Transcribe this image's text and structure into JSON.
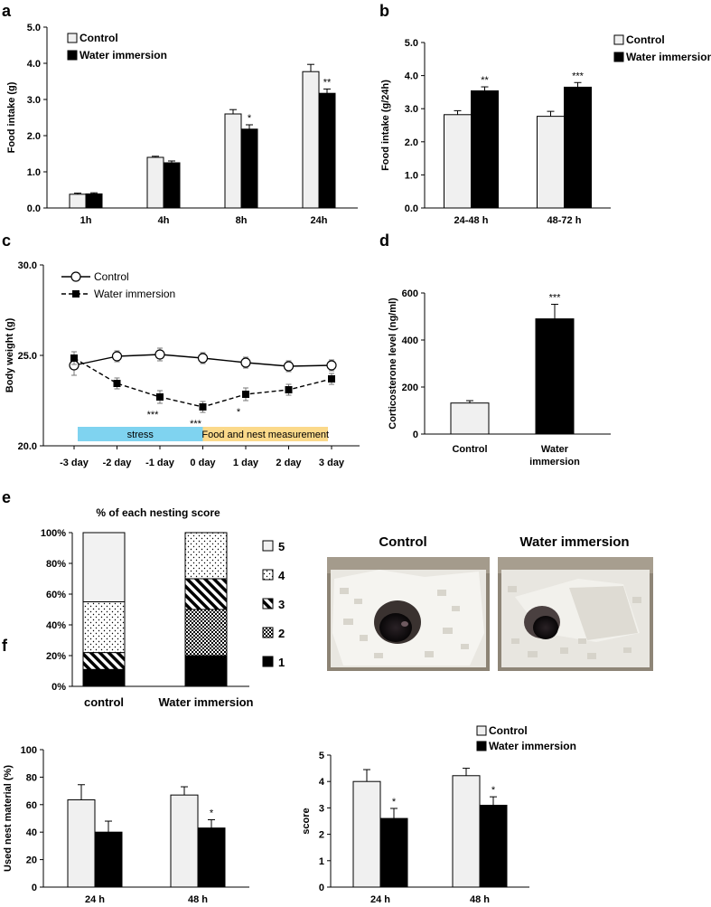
{
  "panels": [
    "a",
    "b",
    "c",
    "d",
    "e",
    "f"
  ],
  "legend": {
    "control": "Control",
    "water": "Water immersion"
  },
  "photos": {
    "control_title": "Control",
    "water_title": "Water immersion"
  },
  "colors": {
    "control_fill": "#f0f0f0",
    "water_fill": "#000000",
    "stress_band": "#7fd3f0",
    "food_band": "#fbd98a"
  },
  "chart_data": [
    {
      "id": "a",
      "type": "bar",
      "categories": [
        "1h",
        "4h",
        "8h",
        "24h"
      ],
      "ylabel": "Food intake (g)",
      "ylim": [
        0,
        5
      ],
      "yticks": [
        "0.0",
        "1.0",
        "2.0",
        "3.0",
        "4.0",
        "5.0"
      ],
      "series": [
        {
          "name": "Control",
          "values": [
            0.38,
            1.4,
            2.6,
            3.77
          ],
          "errors": [
            0.03,
            0.03,
            0.12,
            0.2
          ],
          "sig": [
            "",
            "",
            "",
            ""
          ]
        },
        {
          "name": "Water immersion",
          "values": [
            0.39,
            1.25,
            2.18,
            3.17
          ],
          "errors": [
            0.03,
            0.05,
            0.12,
            0.12
          ],
          "sig": [
            "",
            "",
            "*",
            "**"
          ]
        }
      ]
    },
    {
      "id": "b",
      "type": "bar",
      "categories": [
        "24-48 h",
        "48-72 h"
      ],
      "ylabel": "Food intake (g/24h)",
      "ylim": [
        0,
        5
      ],
      "yticks": [
        "0.0",
        "1.0",
        "2.0",
        "3.0",
        "4.0",
        "5.0"
      ],
      "series": [
        {
          "name": "Control",
          "values": [
            2.82,
            2.77
          ],
          "errors": [
            0.12,
            0.15
          ],
          "sig": [
            "",
            ""
          ]
        },
        {
          "name": "Water immersion",
          "values": [
            3.54,
            3.65
          ],
          "errors": [
            0.12,
            0.14
          ],
          "sig": [
            "**",
            "***"
          ]
        }
      ]
    },
    {
      "id": "c",
      "type": "line",
      "x": [
        "-3 day",
        "-2 day",
        "-1 day",
        "0 day",
        "1 day",
        "2 day",
        "3 day"
      ],
      "ylabel": "Body weight (g)",
      "ylim": [
        20,
        30
      ],
      "yticks": [
        "20.0",
        "25.0",
        "30.0"
      ],
      "series": [
        {
          "name": "Control",
          "values": [
            24.45,
            24.95,
            25.05,
            24.85,
            24.6,
            24.4,
            24.45
          ],
          "errors": [
            0.55,
            0.3,
            0.35,
            0.3,
            0.3,
            0.3,
            0.3
          ],
          "sig": [
            "",
            "",
            "",
            "",
            "",
            "",
            ""
          ]
        },
        {
          "name": "Water immersion",
          "values": [
            24.85,
            23.45,
            22.7,
            22.15,
            22.85,
            23.1,
            23.7
          ],
          "errors": [
            0.35,
            0.3,
            0.35,
            0.3,
            0.35,
            0.3,
            0.3
          ],
          "sig": [
            "",
            "",
            "***",
            "***",
            "*",
            "",
            ""
          ]
        }
      ],
      "bands": [
        {
          "label": "stress",
          "from": "-3 day",
          "to": "0 day"
        },
        {
          "label": "Food and nest measurement",
          "from": "0 day",
          "to": "3 day"
        }
      ]
    },
    {
      "id": "d",
      "type": "bar",
      "categories": [
        "Control",
        "Water immersion"
      ],
      "ylabel": "Corticosterone level (ng/ml)",
      "ylim": [
        0,
        600
      ],
      "yticks": [
        "0",
        "200",
        "400",
        "600"
      ],
      "values": [
        132,
        490
      ],
      "errors": [
        10,
        62
      ],
      "sig": [
        "",
        "***"
      ]
    },
    {
      "id": "e",
      "type": "bar",
      "stacked": true,
      "title": "% of each nesting score",
      "categories": [
        "control",
        "Water immersion"
      ],
      "ylim": [
        0,
        100
      ],
      "yticks": [
        "0%",
        "20%",
        "40%",
        "60%",
        "80%",
        "100%"
      ],
      "series": [
        {
          "name": "1",
          "values": [
            11,
            20
          ]
        },
        {
          "name": "2",
          "values": [
            0,
            30
          ]
        },
        {
          "name": "3",
          "values": [
            11,
            20
          ]
        },
        {
          "name": "4",
          "values": [
            33,
            30
          ]
        },
        {
          "name": "5",
          "values": [
            45,
            0
          ]
        }
      ]
    },
    {
      "id": "f1",
      "type": "bar",
      "categories": [
        "24 h",
        "48 h"
      ],
      "ylabel": "Used nest material (%)",
      "ylim": [
        0,
        100
      ],
      "yticks": [
        "0",
        "20",
        "40",
        "60",
        "80",
        "100"
      ],
      "series": [
        {
          "name": "Control",
          "values": [
            63.5,
            67
          ],
          "errors": [
            11,
            6
          ],
          "sig": [
            "",
            ""
          ]
        },
        {
          "name": "Water immersion",
          "values": [
            40,
            43
          ],
          "errors": [
            8,
            6
          ],
          "sig": [
            "",
            "*"
          ]
        }
      ]
    },
    {
      "id": "f2",
      "type": "bar",
      "categories": [
        "24 h",
        "48 h"
      ],
      "ylabel": "score",
      "ylim": [
        0,
        5
      ],
      "yticks": [
        "0",
        "1",
        "2",
        "3",
        "4",
        "5"
      ],
      "series": [
        {
          "name": "Control",
          "values": [
            4.0,
            4.22
          ],
          "errors": [
            0.45,
            0.28
          ],
          "sig": [
            "",
            ""
          ]
        },
        {
          "name": "Water immersion",
          "values": [
            2.6,
            3.1
          ],
          "errors": [
            0.38,
            0.32
          ],
          "sig": [
            "*",
            "*"
          ]
        }
      ]
    }
  ]
}
